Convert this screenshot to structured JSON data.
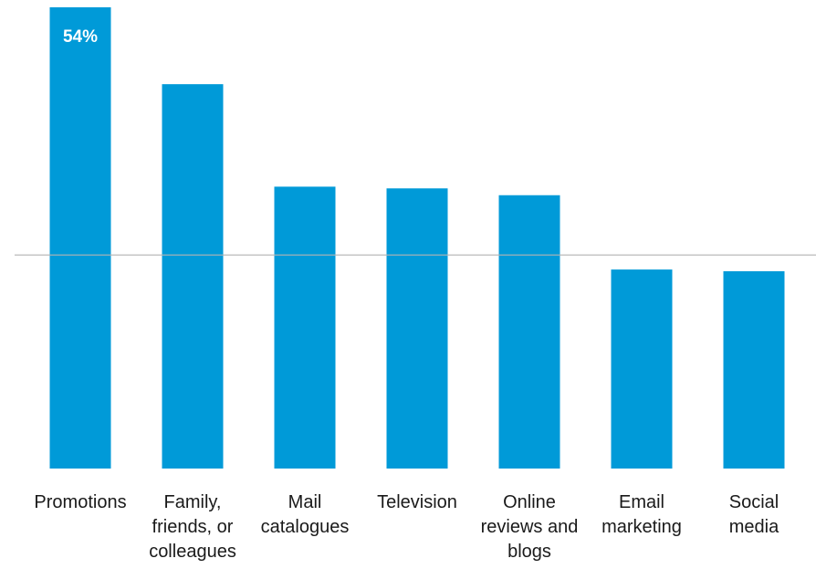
{
  "chart_data": {
    "type": "bar",
    "categories": [
      [
        "Promotions"
      ],
      [
        "Family,",
        "friends, or",
        "colleagues"
      ],
      [
        "Mail",
        "catalogues"
      ],
      [
        "Television"
      ],
      [
        "Online",
        "reviews and",
        "blogs"
      ],
      [
        "Email",
        "marketing"
      ],
      [
        "Social",
        "media"
      ]
    ],
    "values": [
      54,
      45,
      33,
      32.8,
      32,
      23.3,
      23.1
    ],
    "data_labels": [
      "54%",
      "",
      "",
      "",
      "",
      "",
      ""
    ],
    "reference_line": 25,
    "ylim": [
      0,
      54
    ],
    "grid": false,
    "legend": "none",
    "colors": {
      "bar": "#009ad8",
      "reference_line": "#b3b3b3",
      "text": "#1a1a1a",
      "data_label": "#ffffff"
    }
  }
}
